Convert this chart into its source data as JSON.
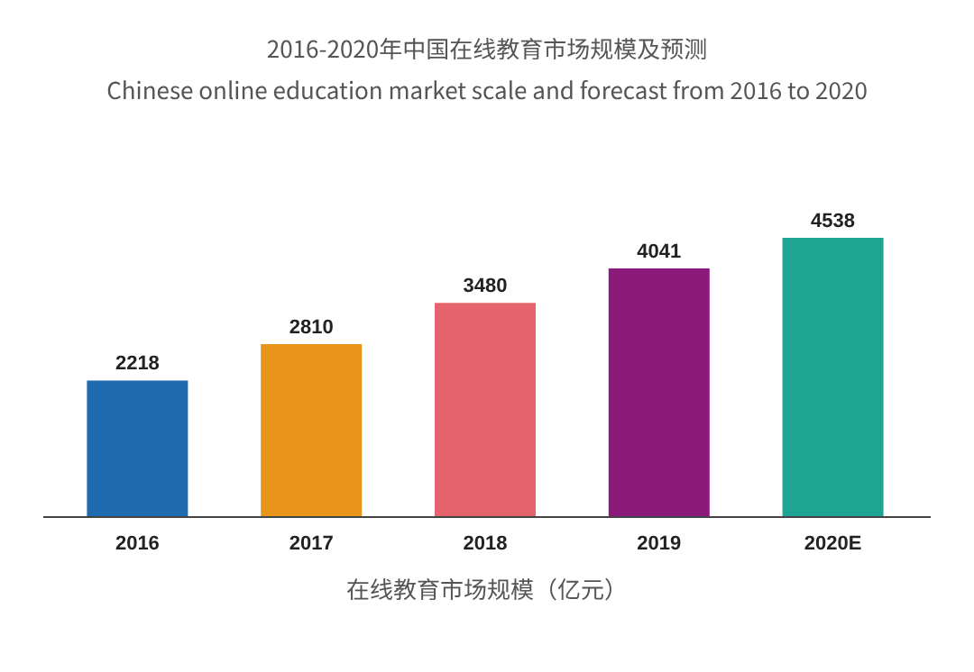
{
  "chart_data": {
    "type": "bar",
    "title": "2016-2020年中国在线教育市场规模及预测",
    "subtitle": "Chinese online education market scale and forecast from 2016 to 2020",
    "xlabel": "在线教育市场规模（亿元）",
    "categories": [
      "2016",
      "2017",
      "2018",
      "2019",
      "2020E"
    ],
    "values": [
      2218,
      2810,
      3480,
      4041,
      4538
    ],
    "colors": [
      "#1f6bb0",
      "#e8941a",
      "#e5636c",
      "#8b1a7a",
      "#1fa393"
    ],
    "data_labels": true
  }
}
